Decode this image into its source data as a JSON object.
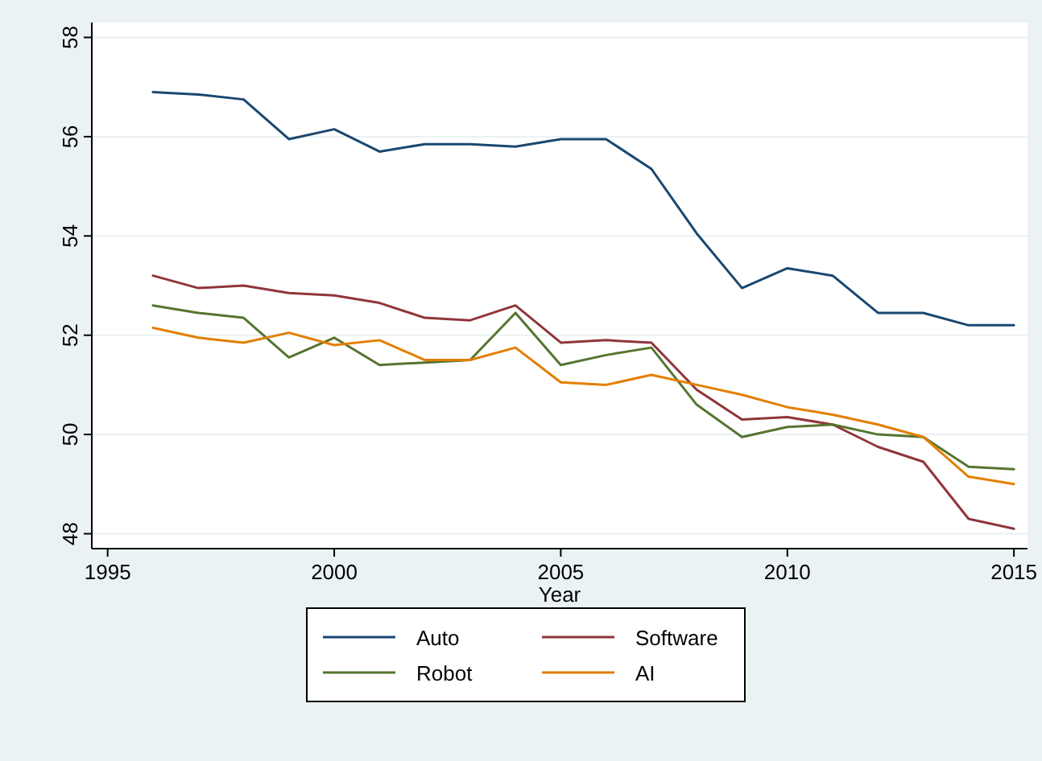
{
  "chart_data": {
    "type": "line",
    "xlabel": "Year",
    "x": [
      1996,
      1997,
      1998,
      1999,
      2000,
      2001,
      2002,
      2003,
      2004,
      2005,
      2006,
      2007,
      2008,
      2009,
      2010,
      2011,
      2012,
      2013,
      2014,
      2015
    ],
    "xlim": [
      1994.65,
      2015.3
    ],
    "xticks": [
      1995,
      2000,
      2005,
      2010,
      2015
    ],
    "ylim": [
      47.7,
      58.3
    ],
    "yticks": [
      48,
      50,
      52,
      54,
      56,
      58
    ],
    "grid": "y",
    "legend": "bottom",
    "marker": "none",
    "line_style": "solid",
    "series": [
      {
        "name": "Auto",
        "color": "#1a476f",
        "values": [
          56.9,
          56.85,
          56.75,
          55.95,
          56.15,
          55.7,
          55.85,
          55.85,
          55.8,
          55.95,
          55.95,
          55.35,
          54.05,
          52.95,
          53.35,
          53.2,
          52.45,
          52.45,
          52.2,
          52.2
        ]
      },
      {
        "name": "Software",
        "color": "#90353b",
        "values": [
          53.2,
          52.95,
          53.0,
          52.85,
          52.8,
          52.65,
          52.35,
          52.3,
          52.6,
          51.85,
          51.9,
          51.85,
          50.9,
          50.3,
          50.35,
          50.2,
          49.75,
          49.45,
          48.3,
          48.1
        ]
      },
      {
        "name": "Robot",
        "color": "#55752f",
        "values": [
          52.6,
          52.45,
          52.35,
          51.55,
          51.95,
          51.4,
          51.45,
          51.5,
          52.45,
          51.4,
          51.6,
          51.75,
          50.6,
          49.95,
          50.15,
          50.2,
          50.0,
          49.95,
          49.35,
          49.3
        ]
      },
      {
        "name": "AI",
        "color": "#e37e00",
        "values": [
          52.15,
          51.95,
          51.85,
          52.05,
          51.8,
          51.9,
          51.5,
          51.5,
          51.75,
          51.05,
          51.0,
          51.2,
          51.0,
          50.8,
          50.55,
          50.4,
          50.2,
          49.95,
          49.15,
          49.0
        ]
      }
    ]
  }
}
